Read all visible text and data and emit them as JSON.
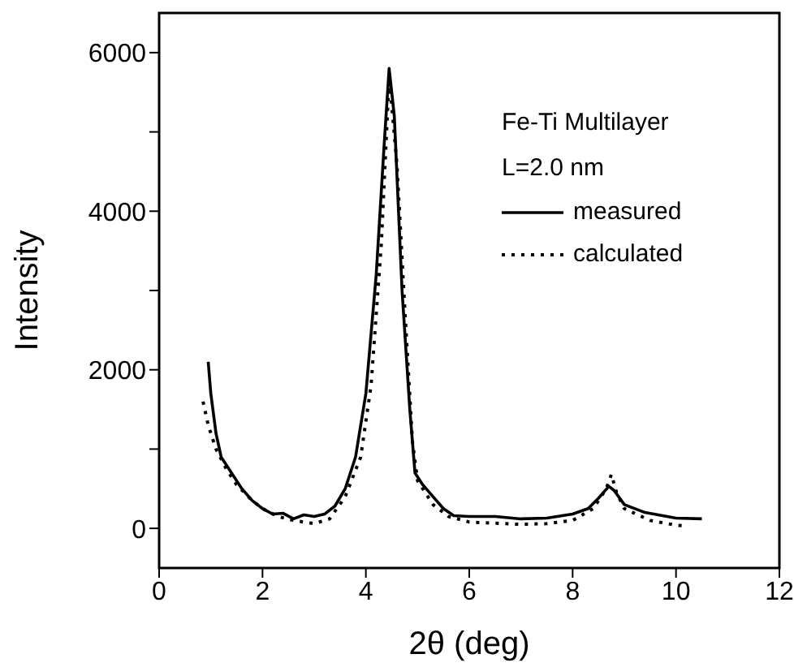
{
  "chart_data": {
    "type": "line",
    "xlabel": "2θ (deg)",
    "ylabel": "Intensity",
    "legend_title": "Fe-Ti Multilayer",
    "annotations": [
      "L=2.0 nm"
    ],
    "xlim": [
      0,
      12
    ],
    "xticks": [
      0,
      2,
      4,
      6,
      8,
      10,
      12
    ],
    "ylim": [
      -500,
      6500
    ],
    "yticks": [
      {
        "value": 0,
        "label": "0"
      },
      {
        "value": 1000,
        "label": null
      },
      2000,
      {
        "value": 3000,
        "label": null
      },
      4000,
      {
        "value": 5000,
        "label": null
      },
      6000
    ],
    "legend": "top right",
    "grid": false,
    "marker": "none",
    "series": [
      {
        "name": "measured",
        "color": "#000000",
        "line_style": "solid",
        "x": [
          0.95,
          1.0,
          1.1,
          1.2,
          1.4,
          1.6,
          1.8,
          2.0,
          2.2,
          2.4,
          2.6,
          2.8,
          3.0,
          3.2,
          3.4,
          3.6,
          3.8,
          4.0,
          4.2,
          4.35,
          4.45,
          4.55,
          4.7,
          4.85,
          4.95,
          5.1,
          5.3,
          5.5,
          5.7,
          6.0,
          6.5,
          7.0,
          7.5,
          8.0,
          8.3,
          8.5,
          8.7,
          8.8,
          9.0,
          9.4,
          10.0,
          10.5
        ],
        "values": [
          2100,
          1700,
          1200,
          900,
          700,
          500,
          350,
          250,
          180,
          190,
          120,
          170,
          150,
          180,
          280,
          500,
          900,
          1700,
          3200,
          4800,
          5800,
          5200,
          3000,
          1500,
          700,
          550,
          400,
          250,
          160,
          150,
          150,
          120,
          130,
          180,
          250,
          380,
          530,
          480,
          300,
          200,
          130,
          120
        ]
      },
      {
        "name": "calculated",
        "color": "#000000",
        "line_style": "dotted",
        "x": [
          0.85,
          0.95,
          1.1,
          1.3,
          1.5,
          1.8,
          2.0,
          2.3,
          2.6,
          3.0,
          3.3,
          3.6,
          3.9,
          4.1,
          4.3,
          4.45,
          4.6,
          4.75,
          4.9,
          5.0,
          5.3,
          5.6,
          6.0,
          7.0,
          7.5,
          8.0,
          8.4,
          8.65,
          8.75,
          8.85,
          9.0,
          9.5,
          10.0,
          10.2
        ],
        "values": [
          1600,
          1300,
          1000,
          750,
          550,
          350,
          250,
          150,
          100,
          60,
          120,
          400,
          900,
          1800,
          3600,
          5700,
          4600,
          2800,
          1100,
          600,
          300,
          150,
          80,
          50,
          60,
          100,
          250,
          500,
          680,
          450,
          250,
          100,
          40,
          30
        ]
      }
    ]
  }
}
